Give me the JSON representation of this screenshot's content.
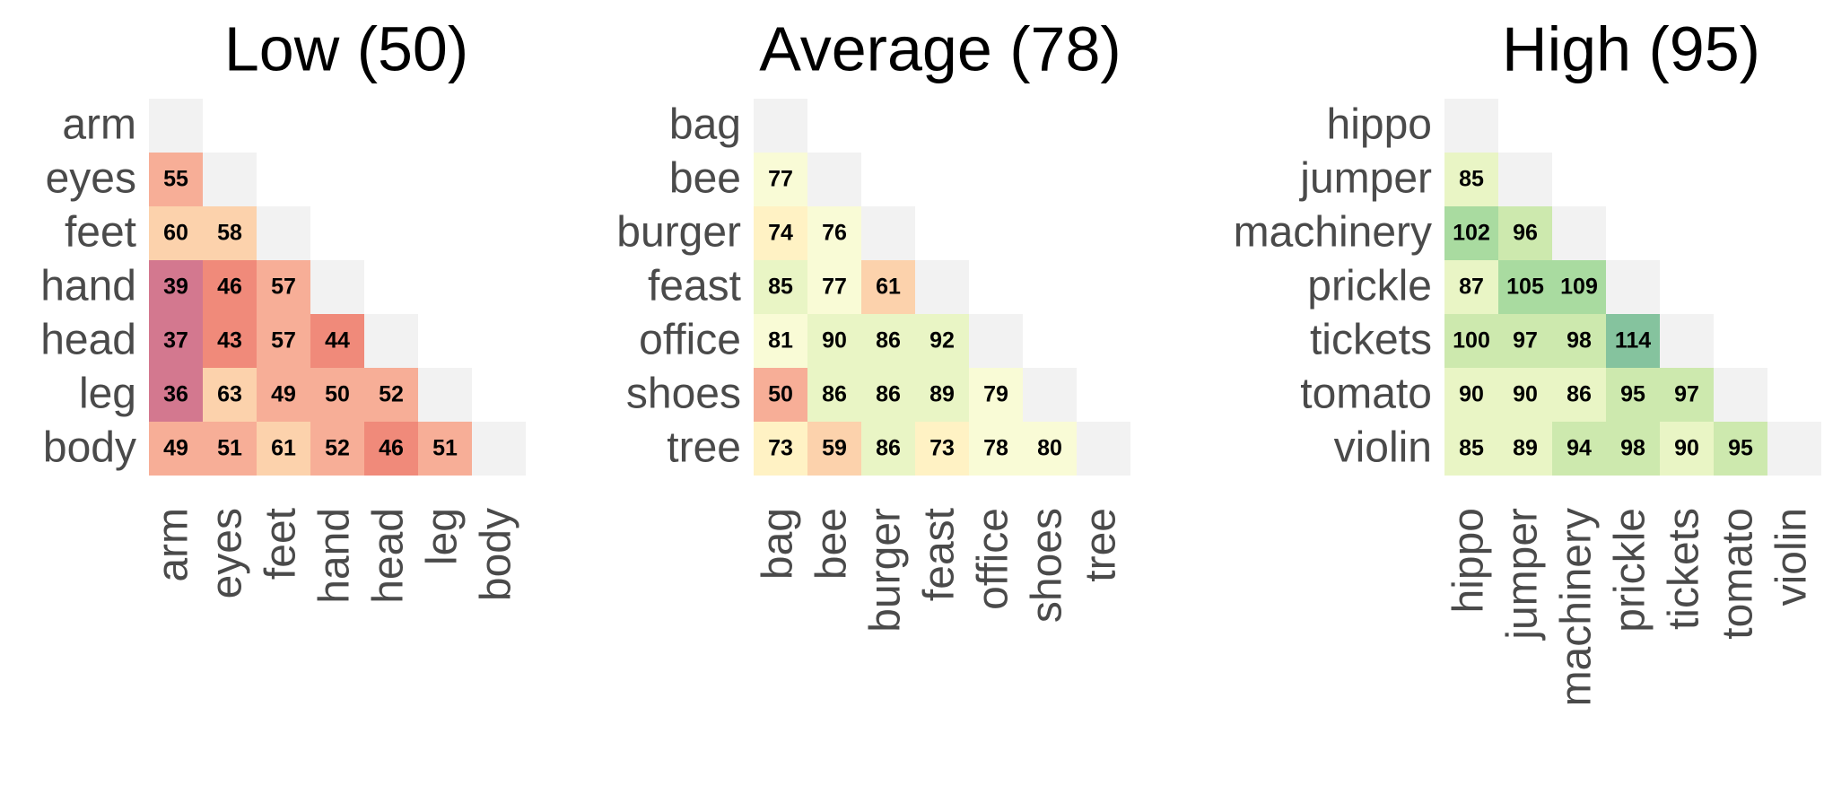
{
  "colors": {
    "diagonal": "#f2f2f2",
    "scale": [
      "#d3788f",
      "#f08a7a",
      "#f7ae97",
      "#fcd2ac",
      "#fff2c4",
      "#f9fbd6",
      "#e9f5c5",
      "#cde9ae",
      "#a9dba0",
      "#85c39e"
    ]
  },
  "chart_data": [
    {
      "type": "heatmap",
      "title": "Low (50)",
      "labels": [
        "arm",
        "eyes",
        "feet",
        "hand",
        "head",
        "leg",
        "body"
      ],
      "values": [
        [
          null,
          null,
          null,
          null,
          null,
          null
        ],
        [
          55,
          null,
          null,
          null,
          null,
          null
        ],
        [
          60,
          58,
          null,
          null,
          null,
          null
        ],
        [
          39,
          46,
          57,
          null,
          null,
          null
        ],
        [
          37,
          43,
          57,
          44,
          null,
          null
        ],
        [
          36,
          63,
          49,
          50,
          52,
          null
        ],
        [
          49,
          51,
          61,
          52,
          46,
          51
        ]
      ]
    },
    {
      "type": "heatmap",
      "title": "Average (78)",
      "labels": [
        "bag",
        "bee",
        "burger",
        "feast",
        "office",
        "shoes",
        "tree"
      ],
      "values": [
        [
          null,
          null,
          null,
          null,
          null,
          null
        ],
        [
          77,
          null,
          null,
          null,
          null,
          null
        ],
        [
          74,
          76,
          null,
          null,
          null,
          null
        ],
        [
          85,
          77,
          61,
          null,
          null,
          null
        ],
        [
          81,
          90,
          86,
          92,
          null,
          null
        ],
        [
          50,
          86,
          86,
          89,
          79,
          null
        ],
        [
          73,
          59,
          86,
          73,
          78,
          80
        ]
      ]
    },
    {
      "type": "heatmap",
      "title": "High (95)",
      "labels": [
        "hippo",
        "jumper",
        "machinery",
        "prickle",
        "tickets",
        "tomato",
        "violin"
      ],
      "values": [
        [
          null,
          null,
          null,
          null,
          null,
          null
        ],
        [
          85,
          null,
          null,
          null,
          null,
          null
        ],
        [
          102,
          96,
          null,
          null,
          null,
          null
        ],
        [
          87,
          105,
          109,
          null,
          null,
          null
        ],
        [
          100,
          97,
          98,
          114,
          null,
          null
        ],
        [
          90,
          90,
          86,
          95,
          97,
          null
        ],
        [
          85,
          89,
          94,
          98,
          90,
          95
        ]
      ]
    }
  ]
}
